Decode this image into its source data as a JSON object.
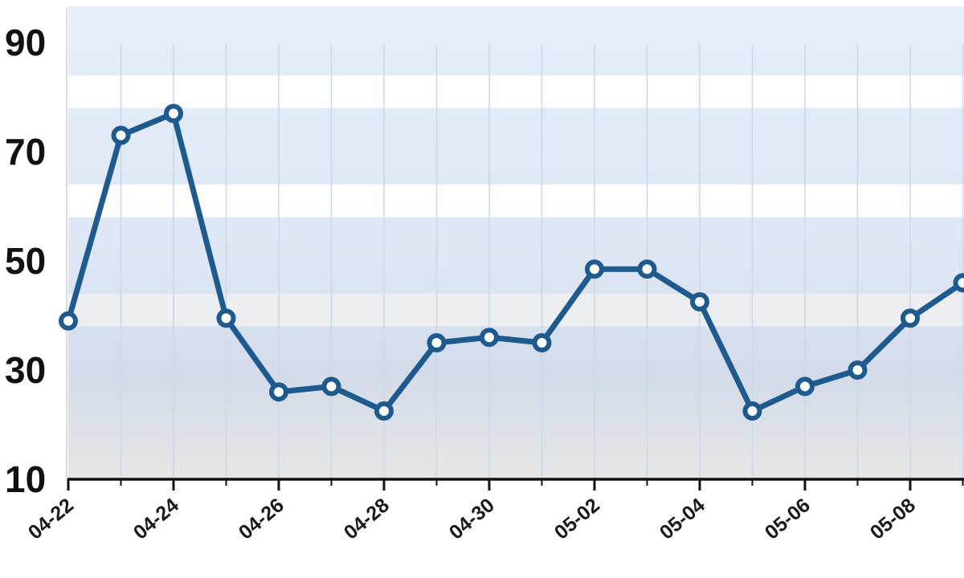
{
  "chart_data": {
    "type": "line",
    "x": [
      "04-22",
      "04-23",
      "04-24",
      "04-25",
      "04-26",
      "04-27",
      "04-28",
      "04-29",
      "04-30",
      "05-01",
      "05-02",
      "05-03",
      "05-04",
      "05-05",
      "05-06",
      "05-07",
      "05-08",
      "05-09"
    ],
    "series": [
      {
        "values": [
          39,
          73,
          77,
          39.5,
          26,
          27,
          22.5,
          35,
          36,
          35,
          48.5,
          48.5,
          42.5,
          22.5,
          27,
          30,
          39.5,
          46
        ]
      }
    ],
    "y_ticks": [
      "10",
      "30",
      "50",
      "70",
      "90"
    ],
    "x_tick_labels": [
      "04-22",
      "04-24",
      "04-26",
      "04-28",
      "04-30",
      "05-02",
      "05-04",
      "05-06",
      "05-08"
    ],
    "ylim": [
      10,
      94
    ],
    "title": "",
    "xlabel": "",
    "ylabel": "",
    "grid": true,
    "legend": "none",
    "colors": {
      "line": "#1e5a8e",
      "marker_fill": "#ffffff",
      "axis": "#111111",
      "gridline": "#c9d8ec"
    }
  }
}
